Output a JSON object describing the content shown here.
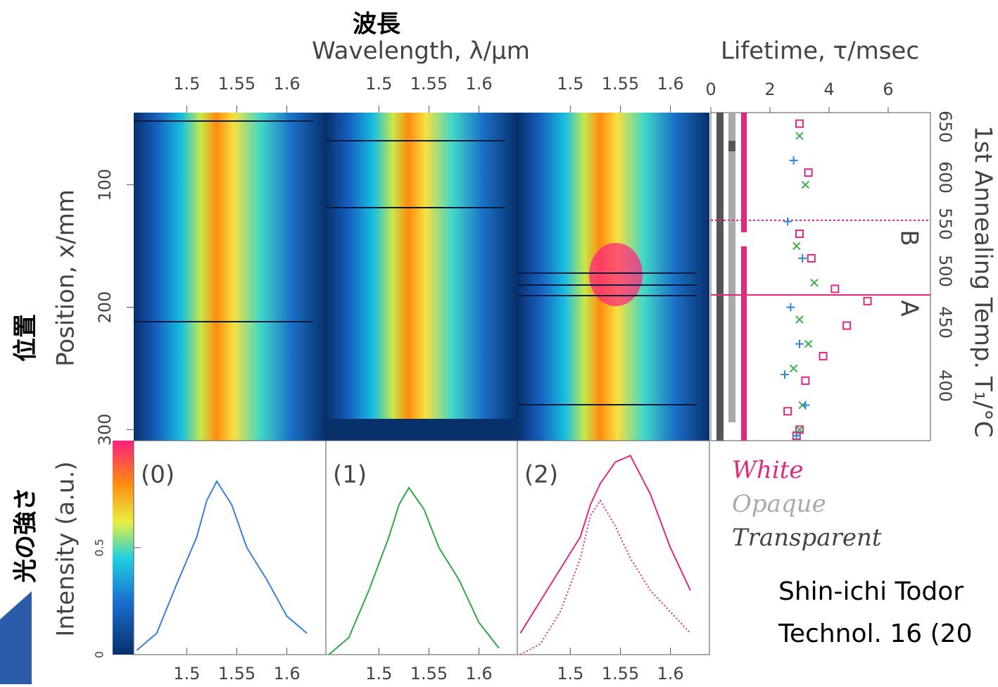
{
  "labels": {
    "jp_wavelength": "波長",
    "wavelength": "Wavelength, λ/μm",
    "lifetime": "Lifetime, τ/msec",
    "jp_position": "位置",
    "position": "Position, x/mm",
    "jp_intensity": "光の強さ",
    "intensity": "Intensity (a.u.)",
    "annealing": "1st Annealing Temp. T₁/°C",
    "annealing_ticks": [
      "650",
      "600",
      "550",
      "500",
      "450",
      "400"
    ],
    "marker_a": "A",
    "marker_b": "B",
    "legend": [
      "White",
      "Opaque",
      "Transparent"
    ],
    "citation": [
      "Shin-ichi Todor",
      "Technol. 16 (20"
    ]
  },
  "chart_data": [
    {
      "type": "line",
      "panels": [
        "(0)",
        "(1)",
        "(2)"
      ],
      "x": [
        1.45,
        1.47,
        1.49,
        1.51,
        1.52,
        1.53,
        1.545,
        1.56,
        1.58,
        1.6,
        1.62
      ],
      "xlim": [
        1.447,
        1.639
      ],
      "xticks": [
        1.5,
        1.55,
        1.6
      ],
      "ylim": [
        0,
        1
      ],
      "yticks": [
        0,
        0.5
      ],
      "series": [
        {
          "panel": 0,
          "color": "#3a7de0",
          "values": [
            0.02,
            0.1,
            0.33,
            0.55,
            0.72,
            0.81,
            0.7,
            0.5,
            0.35,
            0.18,
            0.1
          ]
        },
        {
          "panel": 1,
          "color": "#2ea84a",
          "values": [
            0,
            0.08,
            0.3,
            0.55,
            0.7,
            0.78,
            0.68,
            0.5,
            0.35,
            0.15,
            0.03
          ]
        },
        {
          "panel": 2,
          "color": "#e0287f",
          "values": [
            0.1,
            0.25,
            0.4,
            0.55,
            0.7,
            0.8,
            0.9,
            0.93,
            0.75,
            0.5,
            0.3
          ]
        },
        {
          "panel": 2,
          "color": "#e0287f",
          "dotted": true,
          "values": [
            0,
            0.05,
            0.2,
            0.45,
            0.65,
            0.72,
            0.6,
            0.45,
            0.3,
            0.2,
            0.1
          ]
        }
      ]
    },
    {
      "type": "scatter",
      "xlim": [
        0,
        7.43
      ],
      "xticks": [
        0,
        2,
        4,
        6
      ],
      "ylim": [
        41,
        309
      ],
      "yticks": [
        100,
        200,
        300
      ],
      "series": [
        {
          "marker": "square",
          "color": "#e0287f",
          "x": [
            3.0,
            3.3,
            3.0,
            3.4,
            4.2,
            5.3,
            4.6,
            3.8,
            3.2,
            2.6,
            3.0,
            2.9
          ],
          "y": [
            50,
            90,
            140,
            160,
            185,
            195,
            215,
            240,
            260,
            285,
            300,
            305
          ]
        },
        {
          "marker": "x",
          "color": "#3cb04a",
          "x": [
            3.0,
            3.2,
            2.9,
            3.5,
            3.0,
            3.3,
            2.8,
            3.1,
            3.0
          ],
          "y": [
            60,
            100,
            150,
            180,
            210,
            230,
            250,
            280,
            300
          ]
        },
        {
          "marker": "plus",
          "color": "#2f86d6",
          "x": [
            2.8,
            2.6,
            3.1,
            2.7,
            3.0,
            2.5,
            3.2,
            2.9
          ],
          "y": [
            80,
            130,
            160,
            200,
            230,
            255,
            280,
            305
          ]
        }
      ]
    }
  ]
}
